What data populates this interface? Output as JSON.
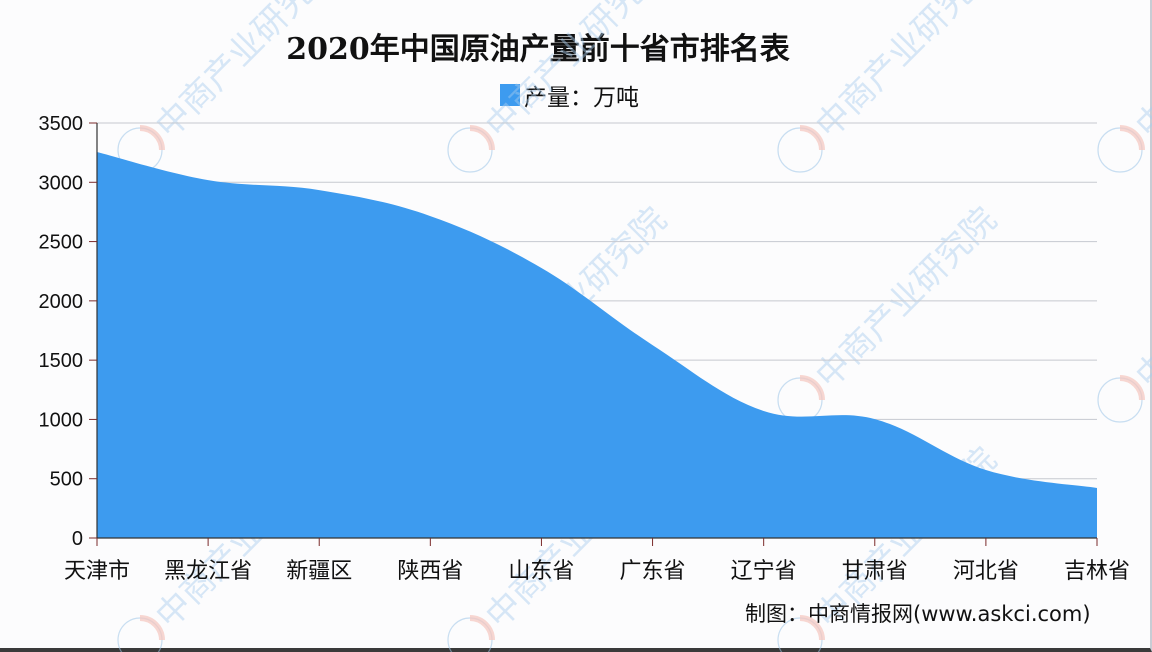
{
  "title": "2020年中国原油产量前十省市排名表",
  "legend": {
    "label": "产量：万吨",
    "color": "#3d9bef"
  },
  "source": "制图：中商情报网(www.askci.com)",
  "watermark": "中商产业研究院",
  "y_axis": {
    "ticks": [
      "0",
      "500",
      "1000",
      "1500",
      "2000",
      "2500",
      "3000",
      "3500"
    ]
  },
  "x_axis": {
    "ticks": [
      "天津市",
      "黑龙江省",
      "新疆区",
      "陕西省",
      "山东省",
      "广东省",
      "辽宁省",
      "甘肃省",
      "河北省",
      "吉林省"
    ]
  },
  "chart_data": {
    "type": "area",
    "title": "2020年中国原油产量前十省市排名表",
    "categories": [
      "天津市",
      "黑龙江省",
      "新疆区",
      "陕西省",
      "山东省",
      "广东省",
      "辽宁省",
      "甘肃省",
      "河北省",
      "吉林省"
    ],
    "series": [
      {
        "name": "产量：万吨",
        "values": [
          3255,
          3018,
          2934,
          2715,
          2277,
          1627,
          1071,
          1003,
          573,
          422
        ],
        "color": "#3d9bef"
      }
    ],
    "xlabel": "",
    "ylabel": "",
    "ylim": [
      0,
      3500
    ],
    "yticks": [
      0,
      500,
      1000,
      1500,
      2000,
      2500,
      3000,
      3500
    ],
    "grid": true,
    "legend_position": "top"
  }
}
